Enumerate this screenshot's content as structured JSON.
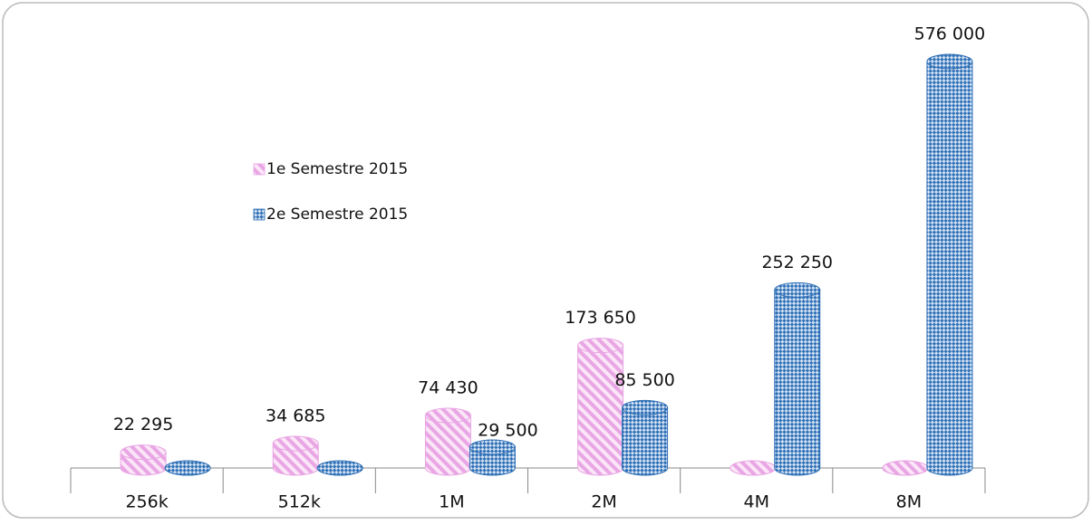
{
  "chart_data": {
    "type": "bar",
    "categories": [
      "256k",
      "512k",
      "1M",
      "2M",
      "4M",
      "8M"
    ],
    "series": [
      {
        "name": "1e Semestre 2015",
        "color": "#e9a6e4",
        "values": [
          22295,
          34685,
          74430,
          173650,
          0,
          0
        ],
        "value_labels": [
          "22 295",
          "34 685",
          "74 430",
          "173 650",
          null,
          null
        ]
      },
      {
        "name": "2e Semestre 2015",
        "color": "#2f6fb5",
        "values": [
          0,
          0,
          29500,
          85500,
          252250,
          576000
        ],
        "value_labels": [
          null,
          null,
          "29 500",
          "85 500",
          "252 250",
          "576 000"
        ]
      }
    ],
    "legend": "left"
  }
}
